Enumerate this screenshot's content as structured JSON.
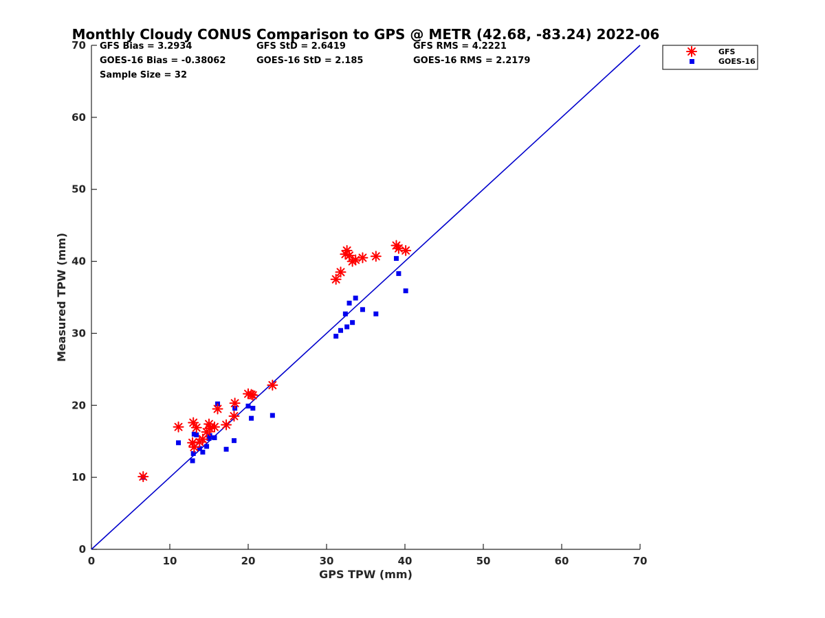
{
  "chart_data": {
    "type": "scatter",
    "title": "Monthly Cloudy CONUS Comparison to GPS @ METR (42.68, -83.24) 2022-06",
    "xlabel": "GPS TPW (mm)",
    "ylabel": "Measured TPW (mm)",
    "xlim": [
      0,
      70
    ],
    "ylim": [
      0,
      70
    ],
    "xticks": [
      "0",
      "10",
      "20",
      "30",
      "40",
      "50",
      "60",
      "70"
    ],
    "yticks": [
      "0",
      "10",
      "20",
      "30",
      "40",
      "50",
      "60",
      "70"
    ],
    "grid": false,
    "legend_position": "top-right",
    "stats": {
      "gfs_bias": "GFS Bias = 3.2934",
      "goes_bias": "GOES-16 Bias = -0.38062",
      "sample_size": "Sample Size = 32",
      "gfs_std": "GFS StD = 2.6419",
      "goes_std": "GOES-16 StD = 2.185",
      "gfs_rms": "GFS RMS = 4.2221",
      "goes_rms": "GOES-16 RMS = 2.2179"
    },
    "reference_line": {
      "x": [
        0,
        70
      ],
      "y": [
        0,
        70
      ],
      "color": "#0000cc"
    },
    "series": [
      {
        "name": "GFS",
        "marker": "asterisk",
        "color": "#ff0000",
        "points": [
          [
            6.6,
            10.1
          ],
          [
            11.1,
            17.0
          ],
          [
            12.9,
            14.8
          ],
          [
            13.0,
            17.6
          ],
          [
            13.1,
            14.2
          ],
          [
            13.4,
            16.9
          ],
          [
            13.8,
            14.9
          ],
          [
            14.2,
            15.3
          ],
          [
            14.7,
            16.3
          ],
          [
            15.0,
            17.4
          ],
          [
            15.1,
            16.8
          ],
          [
            15.7,
            17.0
          ],
          [
            16.1,
            19.5
          ],
          [
            17.2,
            17.3
          ],
          [
            18.2,
            18.5
          ],
          [
            18.3,
            20.3
          ],
          [
            20.0,
            21.6
          ],
          [
            20.4,
            21.5
          ],
          [
            20.6,
            21.4
          ],
          [
            23.1,
            22.8
          ],
          [
            31.2,
            37.5
          ],
          [
            31.8,
            38.5
          ],
          [
            32.4,
            41.0
          ],
          [
            32.6,
            41.5
          ],
          [
            32.9,
            40.8
          ],
          [
            33.3,
            40.0
          ],
          [
            33.7,
            40.2
          ],
          [
            34.6,
            40.5
          ],
          [
            36.3,
            40.7
          ],
          [
            38.9,
            42.2
          ],
          [
            39.2,
            41.8
          ],
          [
            40.1,
            41.5
          ]
        ]
      },
      {
        "name": "GOES-16",
        "marker": "square",
        "color": "#0000ee",
        "points": [
          [
            6.6,
            10.0
          ],
          [
            11.1,
            14.8
          ],
          [
            12.9,
            12.3
          ],
          [
            13.0,
            13.3
          ],
          [
            13.1,
            16.0
          ],
          [
            13.4,
            15.9
          ],
          [
            13.8,
            14.0
          ],
          [
            14.2,
            13.5
          ],
          [
            14.7,
            14.3
          ],
          [
            15.0,
            15.4
          ],
          [
            15.1,
            15.8
          ],
          [
            15.7,
            15.5
          ],
          [
            16.1,
            20.2
          ],
          [
            17.2,
            13.9
          ],
          [
            18.2,
            15.1
          ],
          [
            18.3,
            19.6
          ],
          [
            20.0,
            19.9
          ],
          [
            20.4,
            18.2
          ],
          [
            20.6,
            19.6
          ],
          [
            23.1,
            18.6
          ],
          [
            31.2,
            29.6
          ],
          [
            31.8,
            30.4
          ],
          [
            32.4,
            32.7
          ],
          [
            32.6,
            30.9
          ],
          [
            32.9,
            34.2
          ],
          [
            33.3,
            31.5
          ],
          [
            33.7,
            34.9
          ],
          [
            34.6,
            33.3
          ],
          [
            36.3,
            32.7
          ],
          [
            38.9,
            40.4
          ],
          [
            39.2,
            38.3
          ],
          [
            40.1,
            35.9
          ]
        ]
      }
    ]
  }
}
